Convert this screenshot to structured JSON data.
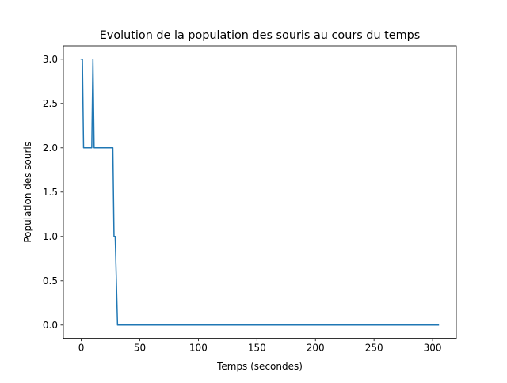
{
  "chart_data": {
    "type": "line",
    "title": "Evolution de la population des souris au cours du temps",
    "xlabel": "Temps (secondes)",
    "ylabel": "Population des souris",
    "xlim": [
      -15.25,
      320.25
    ],
    "ylim": [
      -0.15,
      3.15
    ],
    "xticks": [
      0,
      50,
      100,
      150,
      200,
      250,
      300
    ],
    "xtick_labels": [
      "0",
      "50",
      "100",
      "150",
      "200",
      "250",
      "300"
    ],
    "yticks": [
      0.0,
      0.5,
      1.0,
      1.5,
      2.0,
      2.5,
      3.0
    ],
    "ytick_labels": [
      "0.0",
      "0.5",
      "1.0",
      "1.5",
      "2.0",
      "2.5",
      "3.0"
    ],
    "grid": false,
    "legend": null,
    "series": [
      {
        "color": "#1f77b4",
        "x": [
          0,
          1,
          2,
          8,
          9,
          10,
          11,
          27,
          28,
          29,
          31,
          305
        ],
        "y": [
          3,
          3,
          2,
          2,
          2,
          3,
          2,
          2,
          1,
          1,
          0,
          0
        ]
      }
    ]
  }
}
